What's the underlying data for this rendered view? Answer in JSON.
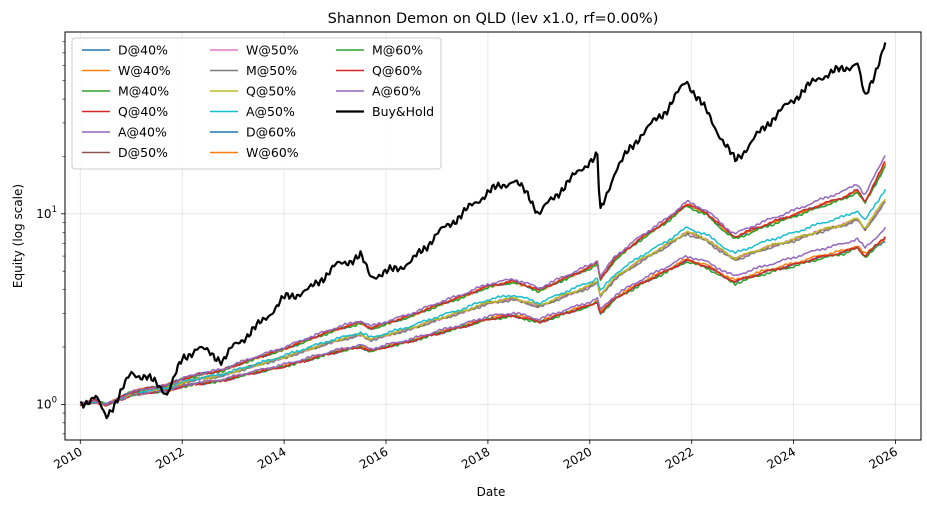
{
  "chart_data": {
    "type": "line",
    "title": "Shannon Demon on QLD (lev x1.0, rf=0.00%)",
    "xlabel": "Date",
    "ylabel": "Equity (log scale)",
    "yscale": "log",
    "xlim": [
      2009.7,
      2026.5
    ],
    "ylim": [
      0.65,
      90
    ],
    "grid": true,
    "legend_placement": "top-left",
    "legend_columns": 3,
    "x_ticks": [
      2010,
      2012,
      2014,
      2016,
      2018,
      2020,
      2022,
      2024,
      2026
    ],
    "x_tick_labels": [
      "2010",
      "2012",
      "2014",
      "2016",
      "2018",
      "2020",
      "2022",
      "2024",
      "2026"
    ],
    "y_ticks": [
      1,
      10
    ],
    "y_tick_labels": [
      "10⁰",
      "10¹"
    ],
    "y_tick_label_parts": [
      {
        "base": "10",
        "exp": "0"
      },
      {
        "base": "10",
        "exp": "1"
      }
    ],
    "x": [
      2010.0,
      2010.3,
      2010.5,
      2010.75,
      2011.0,
      2011.3,
      2011.7,
      2012.0,
      2012.3,
      2012.8,
      2013.0,
      2013.5,
      2014.0,
      2014.5,
      2015.0,
      2015.5,
      2015.7,
      2016.0,
      2016.5,
      2017.0,
      2017.5,
      2018.0,
      2018.5,
      2018.8,
      2019.0,
      2019.5,
      2020.0,
      2020.15,
      2020.2,
      2020.5,
      2021.0,
      2021.5,
      2021.9,
      2022.3,
      2022.7,
      2022.85,
      2023.0,
      2023.5,
      2024.0,
      2024.5,
      2025.0,
      2025.25,
      2025.4,
      2025.8
    ],
    "series": [
      {
        "name": "D@40%",
        "color": "#1f77b4",
        "width": 1.5,
        "values": [
          1.0,
          1.03,
          1.0,
          1.05,
          1.12,
          1.15,
          1.18,
          1.24,
          1.28,
          1.33,
          1.38,
          1.48,
          1.58,
          1.72,
          1.88,
          2.0,
          1.9,
          2.0,
          2.15,
          2.35,
          2.55,
          2.8,
          2.92,
          2.8,
          2.7,
          3.0,
          3.3,
          3.45,
          3.0,
          3.6,
          4.3,
          5.0,
          5.7,
          5.3,
          4.6,
          4.4,
          4.55,
          5.0,
          5.4,
          5.9,
          6.3,
          6.7,
          6.0,
          7.2
        ]
      },
      {
        "name": "W@40%",
        "color": "#ff7f0e",
        "width": 1.5,
        "values": [
          1.0,
          1.03,
          1.0,
          1.05,
          1.12,
          1.15,
          1.18,
          1.25,
          1.29,
          1.34,
          1.39,
          1.5,
          1.6,
          1.74,
          1.9,
          2.02,
          1.92,
          2.02,
          2.17,
          2.38,
          2.58,
          2.84,
          2.96,
          2.84,
          2.73,
          3.04,
          3.35,
          3.5,
          3.03,
          3.65,
          4.36,
          5.07,
          5.78,
          5.38,
          4.67,
          4.47,
          4.63,
          5.09,
          5.5,
          6.02,
          6.43,
          6.84,
          6.12,
          7.4
        ]
      },
      {
        "name": "M@40%",
        "color": "#2ca02c",
        "width": 1.5,
        "values": [
          1.0,
          1.03,
          1.0,
          1.05,
          1.12,
          1.15,
          1.18,
          1.24,
          1.28,
          1.33,
          1.38,
          1.48,
          1.58,
          1.72,
          1.88,
          2.0,
          1.9,
          2.0,
          2.15,
          2.35,
          2.55,
          2.79,
          2.9,
          2.78,
          2.68,
          2.98,
          3.27,
          3.42,
          2.97,
          3.56,
          4.25,
          4.93,
          5.62,
          5.2,
          4.5,
          4.3,
          4.45,
          4.9,
          5.3,
          5.8,
          6.2,
          6.6,
          5.9,
          7.5
        ]
      },
      {
        "name": "Q@40%",
        "color": "#d62728",
        "width": 1.5,
        "values": [
          1.0,
          1.03,
          1.0,
          1.05,
          1.12,
          1.15,
          1.18,
          1.24,
          1.28,
          1.33,
          1.38,
          1.48,
          1.58,
          1.72,
          1.88,
          2.0,
          1.9,
          2.0,
          2.15,
          2.35,
          2.55,
          2.8,
          2.92,
          2.8,
          2.7,
          3.0,
          3.3,
          3.45,
          3.0,
          3.6,
          4.3,
          5.0,
          5.7,
          5.3,
          4.6,
          4.4,
          4.55,
          5.0,
          5.4,
          5.9,
          6.3,
          6.7,
          6.0,
          7.6
        ]
      },
      {
        "name": "A@40%",
        "color": "#9467bd",
        "width": 1.5,
        "values": [
          1.0,
          1.03,
          1.0,
          1.05,
          1.12,
          1.15,
          1.18,
          1.25,
          1.3,
          1.35,
          1.4,
          1.51,
          1.62,
          1.76,
          1.92,
          2.05,
          1.95,
          2.05,
          2.2,
          2.42,
          2.63,
          2.9,
          3.02,
          2.9,
          2.8,
          3.12,
          3.45,
          3.6,
          3.12,
          3.75,
          4.5,
          5.25,
          6.0,
          5.6,
          4.9,
          4.7,
          4.9,
          5.4,
          5.9,
          6.5,
          7.0,
          7.4,
          6.6,
          8.4
        ]
      },
      {
        "name": "D@50%",
        "color": "#8c564b",
        "width": 1.5,
        "values": [
          1.0,
          1.04,
          1.0,
          1.06,
          1.14,
          1.18,
          1.22,
          1.3,
          1.36,
          1.42,
          1.48,
          1.62,
          1.76,
          1.95,
          2.15,
          2.32,
          2.18,
          2.3,
          2.5,
          2.78,
          3.05,
          3.4,
          3.58,
          3.4,
          3.26,
          3.7,
          4.15,
          4.38,
          3.7,
          4.6,
          5.7,
          6.8,
          8.0,
          7.3,
          6.1,
          5.8,
          6.0,
          6.7,
          7.3,
          8.1,
          8.8,
          9.4,
          8.3,
          11.6
        ]
      },
      {
        "name": "W@50%",
        "color": "#e377c2",
        "width": 1.5,
        "values": [
          1.0,
          1.04,
          1.0,
          1.06,
          1.14,
          1.18,
          1.22,
          1.3,
          1.36,
          1.42,
          1.48,
          1.62,
          1.76,
          1.95,
          2.15,
          2.32,
          2.18,
          2.3,
          2.5,
          2.78,
          3.05,
          3.4,
          3.58,
          3.4,
          3.26,
          3.7,
          4.15,
          4.38,
          3.7,
          4.6,
          5.7,
          6.8,
          8.0,
          7.3,
          6.1,
          5.8,
          6.0,
          6.7,
          7.3,
          8.1,
          8.8,
          9.4,
          8.3,
          11.8
        ]
      },
      {
        "name": "M@50%",
        "color": "#7f7f7f",
        "width": 1.5,
        "values": [
          1.0,
          1.04,
          1.0,
          1.06,
          1.14,
          1.18,
          1.22,
          1.29,
          1.35,
          1.41,
          1.47,
          1.61,
          1.75,
          1.94,
          2.14,
          2.3,
          2.17,
          2.29,
          2.48,
          2.76,
          3.03,
          3.37,
          3.55,
          3.37,
          3.23,
          3.67,
          4.1,
          4.33,
          3.67,
          4.55,
          5.6,
          6.7,
          7.85,
          7.15,
          6.0,
          5.7,
          5.9,
          6.6,
          7.2,
          8.0,
          8.7,
          9.3,
          8.2,
          11.5
        ]
      },
      {
        "name": "Q@50%",
        "color": "#bcbd22",
        "width": 1.5,
        "values": [
          1.0,
          1.04,
          1.0,
          1.06,
          1.14,
          1.18,
          1.22,
          1.3,
          1.36,
          1.42,
          1.48,
          1.62,
          1.77,
          1.96,
          2.17,
          2.34,
          2.2,
          2.32,
          2.52,
          2.8,
          3.08,
          3.43,
          3.62,
          3.44,
          3.3,
          3.75,
          4.2,
          4.43,
          3.75,
          4.65,
          5.75,
          6.85,
          8.05,
          7.35,
          6.15,
          5.85,
          6.05,
          6.75,
          7.35,
          8.15,
          8.85,
          9.5,
          8.4,
          12.0
        ]
      },
      {
        "name": "A@50%",
        "color": "#17becf",
        "width": 1.5,
        "values": [
          1.0,
          1.04,
          1.0,
          1.06,
          1.14,
          1.18,
          1.22,
          1.31,
          1.37,
          1.44,
          1.5,
          1.64,
          1.8,
          2.0,
          2.2,
          2.38,
          2.24,
          2.36,
          2.58,
          2.88,
          3.17,
          3.55,
          3.75,
          3.55,
          3.4,
          3.88,
          4.38,
          4.62,
          3.9,
          4.85,
          6.0,
          7.15,
          8.45,
          7.75,
          6.5,
          6.2,
          6.45,
          7.25,
          7.95,
          8.85,
          9.7,
          10.4,
          9.2,
          13.5
        ]
      },
      {
        "name": "D@60%",
        "color": "#1f77b4",
        "width": 1.5,
        "values": [
          1.0,
          1.05,
          0.99,
          1.07,
          1.16,
          1.21,
          1.26,
          1.36,
          1.43,
          1.51,
          1.59,
          1.77,
          1.95,
          2.2,
          2.46,
          2.68,
          2.5,
          2.65,
          2.92,
          3.3,
          3.67,
          4.15,
          4.4,
          4.15,
          3.95,
          4.55,
          5.2,
          5.5,
          4.5,
          5.8,
          7.4,
          9.1,
          11.2,
          10.0,
          8.0,
          7.5,
          7.8,
          8.8,
          9.8,
          11.0,
          12.2,
          13.2,
          11.5,
          18.0
        ]
      },
      {
        "name": "W@60%",
        "color": "#ff7f0e",
        "width": 1.5,
        "values": [
          1.0,
          1.05,
          0.99,
          1.07,
          1.16,
          1.21,
          1.26,
          1.36,
          1.43,
          1.51,
          1.59,
          1.77,
          1.95,
          2.2,
          2.46,
          2.68,
          2.5,
          2.65,
          2.92,
          3.3,
          3.67,
          4.15,
          4.4,
          4.15,
          3.95,
          4.55,
          5.2,
          5.5,
          4.5,
          5.8,
          7.4,
          9.1,
          11.2,
          10.0,
          8.0,
          7.5,
          7.8,
          8.8,
          9.8,
          11.0,
          12.2,
          13.2,
          11.5,
          18.5
        ]
      },
      {
        "name": "M@60%",
        "color": "#2ca02c",
        "width": 1.5,
        "values": [
          1.0,
          1.05,
          0.99,
          1.07,
          1.16,
          1.21,
          1.26,
          1.35,
          1.42,
          1.5,
          1.58,
          1.76,
          1.94,
          2.18,
          2.44,
          2.66,
          2.48,
          2.63,
          2.9,
          3.27,
          3.64,
          4.12,
          4.37,
          4.12,
          3.92,
          4.52,
          5.15,
          5.45,
          4.45,
          5.75,
          7.3,
          9.0,
          11.0,
          9.8,
          7.85,
          7.35,
          7.65,
          8.65,
          9.65,
          10.8,
          12.0,
          13.0,
          11.3,
          17.8
        ]
      },
      {
        "name": "Q@60%",
        "color": "#d62728",
        "width": 1.5,
        "values": [
          1.0,
          1.05,
          0.99,
          1.07,
          1.16,
          1.21,
          1.26,
          1.36,
          1.43,
          1.51,
          1.59,
          1.77,
          1.96,
          2.21,
          2.47,
          2.7,
          2.52,
          2.67,
          2.94,
          3.32,
          3.7,
          4.18,
          4.43,
          4.18,
          3.98,
          4.58,
          5.24,
          5.55,
          4.55,
          5.85,
          7.45,
          9.15,
          11.3,
          10.1,
          8.1,
          7.6,
          7.9,
          8.9,
          9.9,
          11.1,
          12.3,
          13.3,
          11.6,
          18.8
        ]
      },
      {
        "name": "A@60%",
        "color": "#9467bd",
        "width": 1.5,
        "values": [
          1.0,
          1.05,
          0.99,
          1.07,
          1.16,
          1.21,
          1.26,
          1.37,
          1.44,
          1.53,
          1.61,
          1.8,
          1.99,
          2.25,
          2.52,
          2.75,
          2.57,
          2.72,
          3.0,
          3.4,
          3.78,
          4.28,
          4.55,
          4.28,
          4.07,
          4.7,
          5.38,
          5.7,
          4.66,
          6.0,
          7.65,
          9.4,
          11.6,
          10.4,
          8.35,
          7.85,
          8.2,
          9.3,
          10.4,
          11.8,
          13.2,
          14.4,
          12.5,
          20.5
        ]
      },
      {
        "name": "Buy&Hold",
        "color": "#000000",
        "width": 2.2,
        "values": [
          1.0,
          1.1,
          0.85,
          1.1,
          1.45,
          1.4,
          1.15,
          1.7,
          2.0,
          1.7,
          2.0,
          2.6,
          3.6,
          4.0,
          5.3,
          6.0,
          4.7,
          4.9,
          5.6,
          7.8,
          10.0,
          13.0,
          15.0,
          12.5,
          10.0,
          14.0,
          19.0,
          20.0,
          10.0,
          17.0,
          26.0,
          35.0,
          50.0,
          34.0,
          22.0,
          19.0,
          21.0,
          30.0,
          40.0,
          52.0,
          58.0,
          62.0,
          40.0,
          78.0
        ]
      }
    ]
  }
}
